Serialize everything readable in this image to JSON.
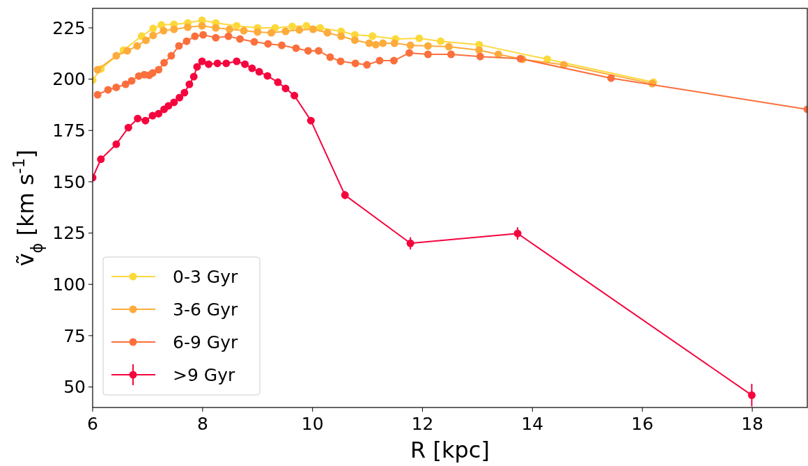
{
  "chart_data": {
    "type": "line",
    "xlabel": "R [kpc]",
    "ylabel": "ṽ$_{ϕ}$ [km s$^{-1}$]",
    "xlim": [
      6,
      19
    ],
    "xticks": [
      6,
      8,
      10,
      12,
      14,
      16,
      18
    ],
    "ylim": [
      40,
      234.5
    ],
    "yticks": [
      50,
      75,
      100,
      125,
      150,
      175,
      200,
      225
    ],
    "grid": false,
    "legend": "bottom left",
    "marker": "circle",
    "line_style": "solid",
    "series": [
      {
        "name": "0-3 Gyr",
        "color": "#fcd93b",
        "x": [
          6.0,
          6.15,
          6.56,
          6.89,
          7.1,
          7.25,
          7.48,
          7.73,
          7.99,
          8.24,
          8.62,
          9.0,
          9.32,
          9.63,
          9.89,
          10.14,
          10.52,
          10.77,
          11.09,
          11.51,
          11.94,
          12.33,
          13.03,
          14.27,
          16.2
        ],
        "values": [
          199.5,
          205,
          214.1,
          221,
          224.7,
          226.4,
          226.7,
          227.4,
          228.7,
          227.4,
          226,
          225,
          225,
          225.7,
          226,
          225,
          223.3,
          221.6,
          221,
          219.6,
          219.9,
          218.5,
          216.8,
          209.7,
          198.5
        ]
      },
      {
        "name": "3-6 Gyr",
        "color": "#fdab3b",
        "x": [
          6.09,
          6.43,
          6.63,
          6.81,
          6.97,
          7.1,
          7.29,
          7.48,
          7.73,
          7.99,
          8.24,
          8.49,
          8.75,
          9.0,
          9.25,
          9.51,
          9.76,
          10.01,
          10.27,
          10.52,
          10.77,
          11.03,
          11.15,
          11.28,
          11.49,
          11.78,
          12.1,
          12.48,
          13.03,
          13.38,
          13.82,
          14.57,
          16.18
        ],
        "values": [
          204.6,
          211.4,
          213.8,
          216.2,
          218.9,
          221.3,
          223.6,
          224.3,
          225.3,
          226,
          225,
          224.3,
          223.6,
          223,
          222.6,
          223.3,
          224,
          224.3,
          222.6,
          220.9,
          219,
          217.5,
          216.8,
          217.5,
          217.5,
          216.5,
          216.2,
          215.8,
          214.1,
          212.1,
          209.7,
          207,
          197.8
        ]
      },
      {
        "name": "6-9 Gyr",
        "color": "#fb6f3c",
        "x": [
          6.09,
          6.28,
          6.43,
          6.6,
          6.71,
          6.84,
          6.94,
          7.03,
          7.09,
          7.2,
          7.3,
          7.43,
          7.57,
          7.71,
          7.86,
          8.01,
          8.24,
          8.47,
          8.68,
          8.94,
          9.19,
          9.44,
          9.7,
          9.92,
          10.11,
          10.32,
          10.51,
          10.78,
          10.99,
          11.22,
          11.48,
          11.76,
          12.1,
          12.52,
          13.05,
          13.78,
          15.43,
          19
        ],
        "values": [
          192.4,
          194.8,
          196,
          197.5,
          199.2,
          201.5,
          202.2,
          201.9,
          203,
          204.6,
          208,
          211.4,
          216.2,
          218.5,
          220.9,
          221.6,
          220.2,
          220.9,
          219.6,
          218.2,
          217.2,
          216.5,
          215.1,
          213.8,
          213.8,
          210.7,
          208.7,
          207.7,
          207,
          209,
          209,
          212.8,
          212.1,
          212.1,
          211,
          210,
          200.5,
          185.3
        ]
      },
      {
        "name": ">9 Gyr",
        "color": "#f5053e",
        "x": [
          6.0,
          6.15,
          6.43,
          6.65,
          6.82,
          6.96,
          7.09,
          7.2,
          7.3,
          7.38,
          7.48,
          7.58,
          7.67,
          7.76,
          7.84,
          7.9,
          7.99,
          8.11,
          8.27,
          8.43,
          8.62,
          8.77,
          8.9,
          9.03,
          9.18,
          9.37,
          9.51,
          9.67,
          9.97,
          10.59,
          11.78,
          13.73,
          17.99
        ],
        "values": [
          152,
          161,
          168.3,
          176.4,
          180.8,
          179.8,
          182.2,
          183.2,
          185.3,
          187,
          188.7,
          191,
          193.4,
          197.5,
          201.2,
          206,
          208.7,
          207.3,
          207.7,
          207.7,
          208.7,
          207.3,
          205.3,
          203.6,
          201.6,
          198.5,
          195.5,
          192,
          179.8,
          143.5,
          120,
          124.8,
          46
        ],
        "errors": [
          null,
          null,
          null,
          null,
          null,
          null,
          null,
          null,
          null,
          null,
          null,
          null,
          null,
          null,
          null,
          null,
          null,
          null,
          null,
          null,
          null,
          null,
          null,
          null,
          null,
          null,
          null,
          null,
          null,
          2,
          3,
          3,
          5.5
        ]
      }
    ]
  }
}
